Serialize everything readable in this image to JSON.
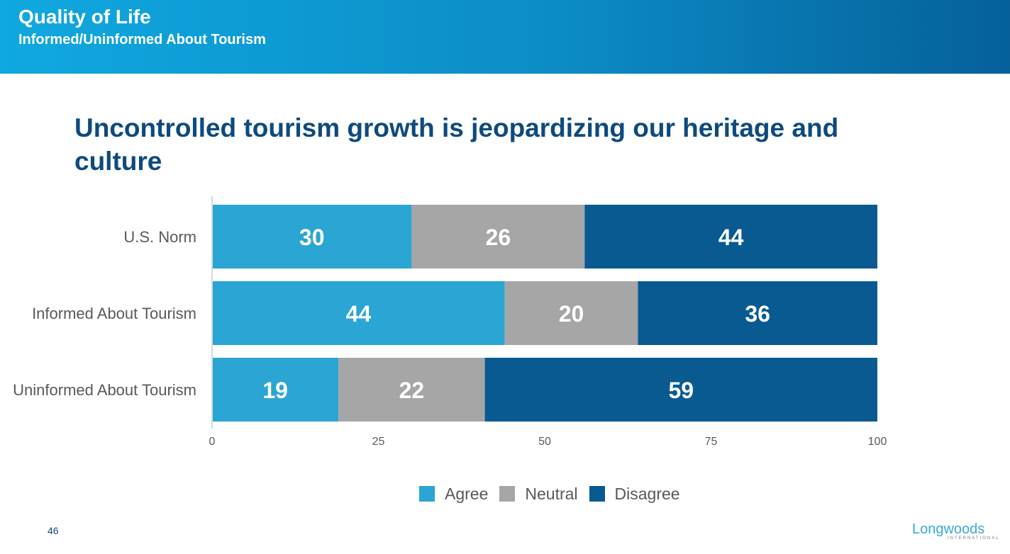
{
  "header": {
    "title": "Quality of Life",
    "subtitle": "Informed/Uninformed About Tourism"
  },
  "page_number": "46",
  "logo": {
    "word": "Longwoods",
    "sub": "INTERNATIONAL"
  },
  "colors": {
    "header_start": "#10a8e0",
    "header_end": "#05609a",
    "title": "#0d4a7e",
    "agree": "#2ba5d3",
    "neutral": "#a6a6a6",
    "disagree": "#095a91"
  },
  "chart_data": {
    "type": "bar",
    "orientation": "horizontal",
    "stacked": true,
    "title": "Uncontrolled tourism growth is jeopardizing our heritage and culture",
    "categories": [
      "U.S. Norm",
      "Informed About Tourism",
      "Uninformed About Tourism"
    ],
    "series": [
      {
        "name": "Agree",
        "color": "#2ba5d3",
        "values": [
          30,
          44,
          19
        ]
      },
      {
        "name": "Neutral",
        "color": "#a6a6a6",
        "values": [
          26,
          20,
          22
        ]
      },
      {
        "name": "Disagree",
        "color": "#095a91",
        "values": [
          44,
          36,
          59
        ]
      }
    ],
    "xlim": [
      0,
      100
    ],
    "xticks": [
      0,
      25,
      50,
      75,
      100
    ],
    "xlabel": "",
    "ylabel": "",
    "grid": false,
    "legend": "bottom"
  }
}
